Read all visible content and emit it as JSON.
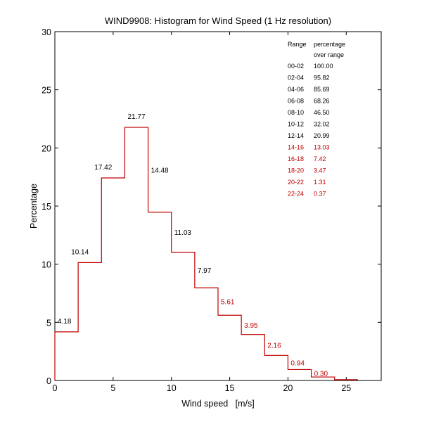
{
  "chart_data": {
    "type": "bar",
    "title": "WIND9908: Histogram for Wind Speed (1 Hz resolution)",
    "xlabel": "Wind speed   [m/s]",
    "ylabel": "Percentage",
    "xlim": [
      0,
      28
    ],
    "ylim": [
      0,
      30
    ],
    "xticks": [
      0,
      5,
      10,
      15,
      20,
      25
    ],
    "yticks": [
      0,
      5,
      10,
      15,
      20,
      25,
      30
    ],
    "grid": false,
    "bin_width": 2,
    "bins": [
      {
        "start": 0,
        "end": 2,
        "value": 4.18,
        "label": "4.18",
        "highlight": false
      },
      {
        "start": 2,
        "end": 4,
        "value": 10.14,
        "label": "10.14",
        "highlight": false
      },
      {
        "start": 4,
        "end": 6,
        "value": 17.42,
        "label": "17.42",
        "highlight": false
      },
      {
        "start": 6,
        "end": 8,
        "value": 21.77,
        "label": "21.77",
        "highlight": false
      },
      {
        "start": 8,
        "end": 10,
        "value": 14.48,
        "label": "14.48",
        "highlight": false
      },
      {
        "start": 10,
        "end": 12,
        "value": 11.03,
        "label": "11.03",
        "highlight": false
      },
      {
        "start": 12,
        "end": 14,
        "value": 7.97,
        "label": "7.97",
        "highlight": false
      },
      {
        "start": 14,
        "end": 16,
        "value": 5.61,
        "label": "5.61",
        "highlight": true
      },
      {
        "start": 16,
        "end": 18,
        "value": 3.95,
        "label": "3.95",
        "highlight": true
      },
      {
        "start": 18,
        "end": 20,
        "value": 2.16,
        "label": "2.16",
        "highlight": true
      },
      {
        "start": 20,
        "end": 22,
        "value": 0.94,
        "label": "0.94",
        "highlight": true
      },
      {
        "start": 22,
        "end": 24,
        "value": 0.3,
        "label": "0.30",
        "highlight": true
      },
      {
        "start": 24,
        "end": 26,
        "value": 0.07,
        "label": null,
        "highlight": true
      }
    ],
    "table": {
      "header": [
        "Range",
        "percentage"
      ],
      "subheader": "over range",
      "legend_position": "top-right",
      "rows": [
        {
          "range": "00-02",
          "pct": "100.00",
          "highlight": false
        },
        {
          "range": "02-04",
          "pct": "95.82",
          "highlight": false
        },
        {
          "range": "04-06",
          "pct": "85.69",
          "highlight": false
        },
        {
          "range": "06-08",
          "pct": "68.26",
          "highlight": false
        },
        {
          "range": "08-10",
          "pct": "46.50",
          "highlight": false
        },
        {
          "range": "10-12",
          "pct": "32.02",
          "highlight": false
        },
        {
          "range": "12-14",
          "pct": "20.99",
          "highlight": false
        },
        {
          "range": "14-16",
          "pct": "13.03",
          "highlight": true
        },
        {
          "range": "16-18",
          "pct": "7.42",
          "highlight": true
        },
        {
          "range": "18-20",
          "pct": "3.47",
          "highlight": true
        },
        {
          "range": "20-22",
          "pct": "1.31",
          "highlight": true
        },
        {
          "range": "22-24",
          "pct": "0.37",
          "highlight": true
        }
      ]
    },
    "colors": {
      "line": "#c00000",
      "label_normal": "#000000",
      "label_highlight": "#c00000",
      "axis": "#000000"
    }
  }
}
